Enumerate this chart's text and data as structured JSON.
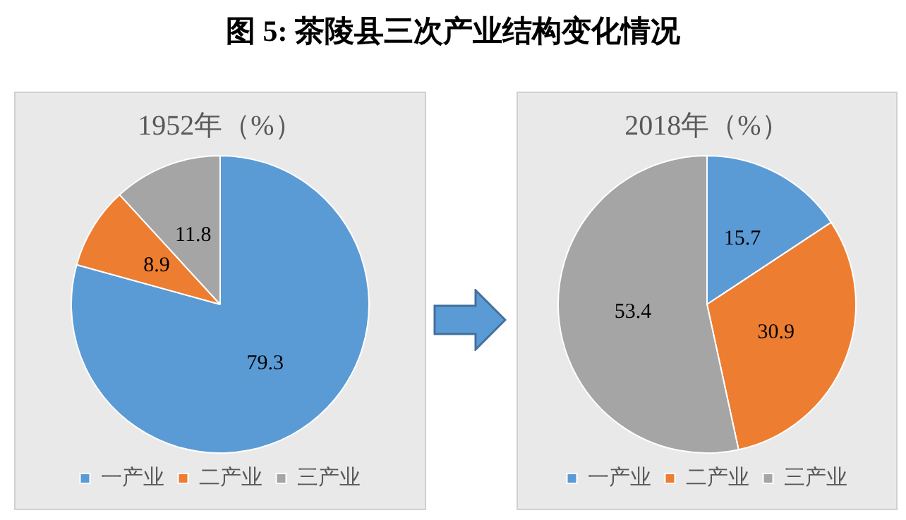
{
  "chart_data": [
    {
      "type": "other",
      "title": "图 5:  茶陵县三次产业结构变化情况"
    },
    {
      "type": "pie",
      "title": "1952年（%）",
      "categories": [
        "一产业",
        "二产业",
        "三产业"
      ],
      "values": [
        79.3,
        8.9,
        11.8
      ],
      "colors": [
        "#5b9bd5",
        "#ed7d31",
        "#a5a5a5"
      ],
      "data_labels": true,
      "legend": "bottom"
    },
    {
      "type": "pie",
      "title": "2018年（%）",
      "categories": [
        "一产业",
        "二产业",
        "三产业"
      ],
      "values": [
        15.7,
        30.9,
        53.4
      ],
      "colors": [
        "#5b9bd5",
        "#ed7d31",
        "#a5a5a5"
      ],
      "data_labels": true,
      "legend": "bottom"
    }
  ]
}
